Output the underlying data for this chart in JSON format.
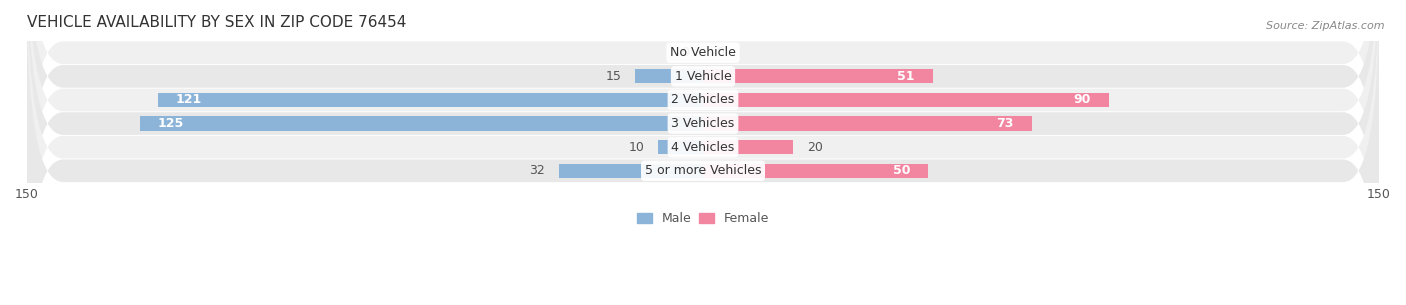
{
  "title": "VEHICLE AVAILABILITY BY SEX IN ZIP CODE 76454",
  "source": "Source: ZipAtlas.com",
  "categories": [
    "No Vehicle",
    "1 Vehicle",
    "2 Vehicles",
    "3 Vehicles",
    "4 Vehicles",
    "5 or more Vehicles"
  ],
  "male_values": [
    0,
    15,
    121,
    125,
    10,
    32
  ],
  "female_values": [
    0,
    51,
    90,
    73,
    20,
    50
  ],
  "xlim": [
    -150,
    150
  ],
  "xticks": [
    -150,
    150
  ],
  "male_color": "#8cb4d8",
  "female_color": "#f285a0",
  "male_label": "Male",
  "female_label": "Female",
  "bar_height": 0.6,
  "row_bg_colors": [
    "#f0f0f0",
    "#e8e8e8"
  ],
  "title_fontsize": 11,
  "source_fontsize": 8,
  "label_fontsize": 9,
  "value_fontsize": 9,
  "category_fontsize": 9,
  "background_color": "#ffffff",
  "value_inside_threshold": 50
}
